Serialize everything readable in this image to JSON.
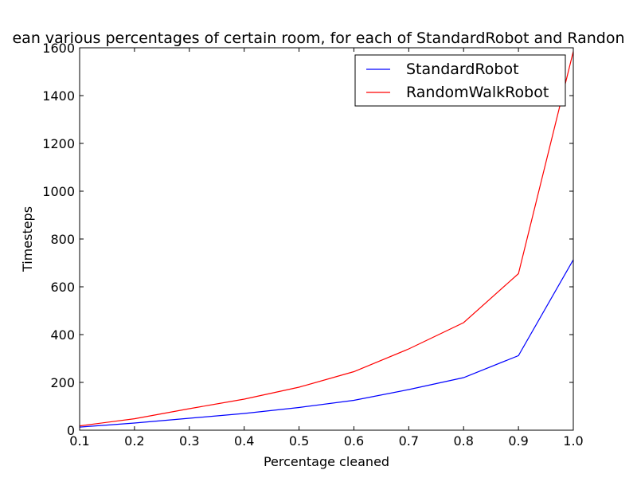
{
  "chart_data": {
    "type": "line",
    "title": "ean various percentages of certain room, for each of StandardRobot and Randon",
    "xlabel": "Percentage cleaned",
    "ylabel": "Timesteps",
    "xlim": [
      0.1,
      1.0
    ],
    "ylim": [
      0,
      1600
    ],
    "xticks": [
      "0.1",
      "0.2",
      "0.3",
      "0.4",
      "0.5",
      "0.6",
      "0.7",
      "0.8",
      "0.9",
      "1.0"
    ],
    "yticks": [
      "0",
      "200",
      "400",
      "600",
      "800",
      "1000",
      "1200",
      "1400",
      "1600"
    ],
    "grid": false,
    "legend_position": "top-right",
    "x": [
      0.1,
      0.2,
      0.3,
      0.4,
      0.5,
      0.6,
      0.7,
      0.8,
      0.9,
      1.0
    ],
    "series": [
      {
        "name": "StandardRobot",
        "color": "#0000ff",
        "values": [
          13,
          30,
          50,
          70,
          95,
          125,
          170,
          220,
          312,
          713
        ]
      },
      {
        "name": "RandomWalkRobot",
        "color": "#ff0000",
        "values": [
          18,
          48,
          90,
          130,
          180,
          245,
          340,
          450,
          655,
          1585
        ]
      }
    ]
  }
}
